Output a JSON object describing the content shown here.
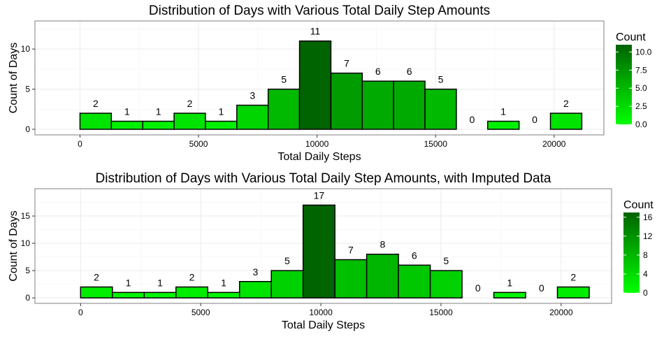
{
  "chart_data": [
    {
      "type": "bar",
      "title": "Distribution of Days with Various Total Daily Step Amounts",
      "xlabel": "Total Daily Steps",
      "ylabel": "Count of Days",
      "bin_edges": [
        0,
        1323,
        2646,
        3969,
        5292,
        6615,
        7938,
        9261,
        10584,
        11907,
        13230,
        14553,
        15876,
        17199,
        18522,
        19845,
        21168
      ],
      "values": [
        2,
        1,
        1,
        2,
        1,
        3,
        5,
        11,
        7,
        6,
        6,
        5,
        0,
        1,
        0,
        2
      ],
      "xlim": [
        -1900,
        22100
      ],
      "ylim": [
        -0.7,
        13.5
      ],
      "x_ticks": [
        0,
        5000,
        10000,
        15000,
        20000
      ],
      "x_tick_labels": [
        "0",
        "5000",
        "10000",
        "15000",
        "20000"
      ],
      "y_ticks": [
        0,
        5,
        10
      ],
      "y_tick_labels": [
        "0",
        "5",
        "10"
      ],
      "grid": true,
      "legend": {
        "title": "Count",
        "position": "right",
        "min": 0,
        "max": 11,
        "ticks": [
          0,
          2.5,
          5,
          7.5,
          10
        ],
        "tick_labels": [
          "0.0",
          "2.5",
          "5.0",
          "7.5",
          "10.0"
        ],
        "low_color": "#00ff00",
        "high_color": "#006400"
      }
    },
    {
      "type": "bar",
      "title": "Distribution of Days with Various Total Daily Step Amounts, with Imputed Data",
      "xlabel": "Total Daily Steps",
      "ylabel": "Count of Days",
      "bin_edges": [
        0,
        1323,
        2646,
        3969,
        5292,
        6615,
        7938,
        9261,
        10584,
        11907,
        13230,
        14553,
        15876,
        17199,
        18522,
        19845,
        21168
      ],
      "values": [
        2,
        1,
        1,
        2,
        1,
        3,
        5,
        17,
        7,
        8,
        6,
        5,
        0,
        1,
        0,
        2
      ],
      "xlim": [
        -1900,
        22100
      ],
      "ylim": [
        -1.0,
        20.0
      ],
      "x_ticks": [
        0,
        5000,
        10000,
        15000,
        20000
      ],
      "x_tick_labels": [
        "0",
        "5000",
        "10000",
        "15000",
        "20000"
      ],
      "y_ticks": [
        0,
        5,
        10,
        15
      ],
      "y_tick_labels": [
        "0",
        "5",
        "10",
        "15"
      ],
      "grid": true,
      "legend": {
        "title": "Count",
        "position": "right",
        "min": 0,
        "max": 17,
        "ticks": [
          0,
          4,
          8,
          12,
          16
        ],
        "tick_labels": [
          "0",
          "4",
          "8",
          "12",
          "16"
        ],
        "low_color": "#00ff00",
        "high_color": "#006400"
      }
    }
  ]
}
